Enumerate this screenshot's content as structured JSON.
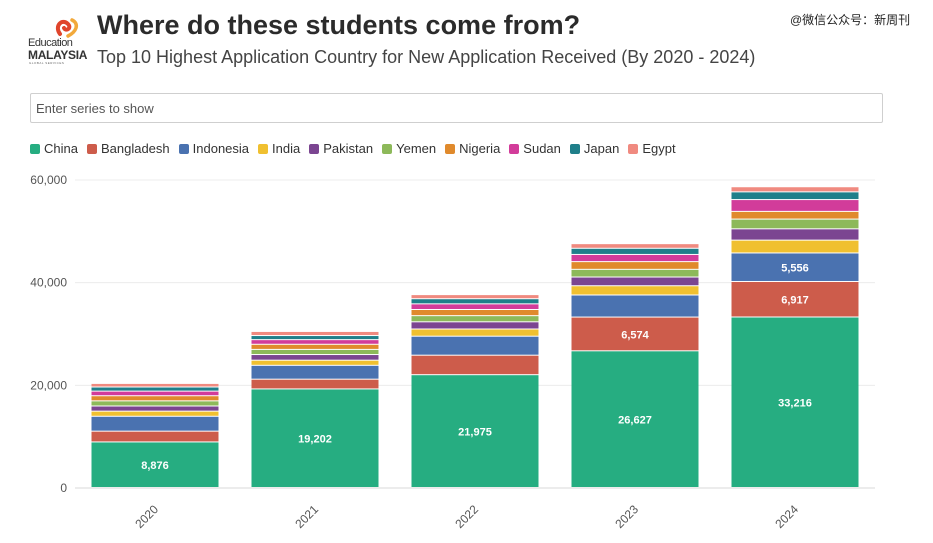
{
  "header": {
    "title": "Where do these students come from?",
    "subtitle": "Top 10 Highest Application Country for New Application Received (By 2020 - 2024)",
    "watermark": "@微信公众号：新周刊"
  },
  "logo": {
    "line1": "Education",
    "line2": "MALAYSIA",
    "tagline": "GLOBAL SERVICES"
  },
  "search": {
    "placeholder": "Enter series to show"
  },
  "chart_data": {
    "type": "bar",
    "stacked": true,
    "categories": [
      "2020",
      "2021",
      "2022",
      "2023",
      "2024"
    ],
    "ylim": [
      0,
      60000
    ],
    "yticks": [
      0,
      20000,
      40000,
      60000
    ],
    "ytick_labels": [
      "0",
      "20,000",
      "40,000",
      "60,000"
    ],
    "grid": true,
    "legend_position": "top-left",
    "series": [
      {
        "name": "China",
        "color": "#26ad81",
        "values": [
          8876,
          19202,
          21975,
          26627,
          33216
        ],
        "labels": [
          "8,876",
          "19,202",
          "21,975",
          "26,627",
          "33,216"
        ]
      },
      {
        "name": "Bangladesh",
        "color": "#cd5c4b",
        "values": [
          2100,
          1900,
          3800,
          6574,
          6917
        ],
        "labels": [
          "",
          "",
          "",
          "6,574",
          "6,917"
        ]
      },
      {
        "name": "Indonesia",
        "color": "#4a72b0",
        "values": [
          2900,
          2700,
          3700,
          4300,
          5556
        ],
        "labels": [
          "",
          "",
          "",
          "",
          "5,556"
        ]
      },
      {
        "name": "India",
        "color": "#f0c030",
        "values": [
          1000,
          1000,
          1400,
          1800,
          2500
        ],
        "labels": [
          "",
          "",
          "",
          "",
          ""
        ]
      },
      {
        "name": "Pakistan",
        "color": "#7b4591",
        "values": [
          1000,
          1100,
          1400,
          1700,
          2200
        ],
        "labels": [
          "",
          "",
          "",
          "",
          ""
        ]
      },
      {
        "name": "Yemen",
        "color": "#8db95a",
        "values": [
          1000,
          1000,
          1200,
          1500,
          1900
        ],
        "labels": [
          "",
          "",
          "",
          "",
          ""
        ]
      },
      {
        "name": "Nigeria",
        "color": "#e08a2c",
        "values": [
          1000,
          1000,
          1200,
          1500,
          1500
        ],
        "labels": [
          "",
          "",
          "",
          "",
          ""
        ]
      },
      {
        "name": "Sudan",
        "color": "#d23c9a",
        "values": [
          900,
          900,
          1100,
          1400,
          2300
        ],
        "labels": [
          "",
          "",
          "",
          "",
          ""
        ]
      },
      {
        "name": "Japan",
        "color": "#1f7f8a",
        "values": [
          800,
          800,
          1000,
          1200,
          1500
        ],
        "labels": [
          "",
          "",
          "",
          "",
          ""
        ]
      },
      {
        "name": "Egypt",
        "color": "#f08a80",
        "values": [
          700,
          800,
          800,
          900,
          1000
        ],
        "labels": [
          "",
          "",
          "",
          "",
          ""
        ]
      }
    ]
  }
}
